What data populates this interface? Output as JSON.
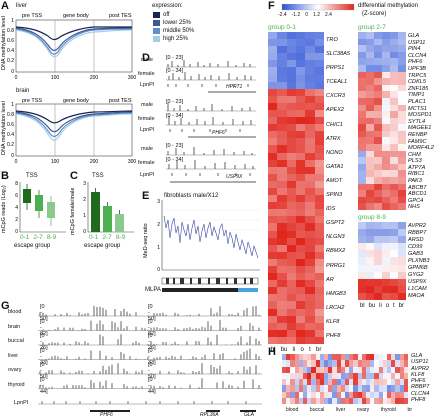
{
  "panels": {
    "A": {
      "label": "A",
      "subtitle_liver": "liver",
      "subtitle_brain": "brain",
      "regions": [
        "pre TSS",
        "gene body",
        "post TES"
      ],
      "ylabel": "DNA methylation level",
      "legend_title": "expression:",
      "legend": [
        {
          "name": "off",
          "color": "#1a2550"
        },
        {
          "name": "lower 25%",
          "color": "#3a5a95"
        },
        {
          "name": "middle 50%",
          "color": "#5f91c9"
        },
        {
          "name": "high 25%",
          "color": "#a9cbea"
        }
      ],
      "yticks": [
        "1",
        "0.8",
        "0.6",
        "0.4",
        "0.2",
        "0"
      ],
      "xticks": [
        "0",
        "100",
        "200",
        "300"
      ]
    },
    "B": {
      "label": "B",
      "title": "TSS",
      "ylabel": "mCpG reads (Log₂)",
      "yticks": [
        "8",
        "6",
        "4",
        "2",
        "0"
      ],
      "xticks": [
        "0-1",
        "2-7",
        "8-9"
      ],
      "xlabel": "escape group"
    },
    "C": {
      "label": "C",
      "title": "TSS",
      "ylabel": "mCpG female/male",
      "yticks": [
        "3",
        "2",
        "1",
        "0"
      ],
      "xticks": [
        "0-1",
        "2-7",
        "8-9"
      ],
      "xlabel": "escape group"
    },
    "D": {
      "label": "D",
      "tracks": [
        {
          "name": "male",
          "range": "0 - 23"
        },
        {
          "name": "female",
          "range": "0 - 34"
        },
        {
          "name": "LpnPI"
        },
        {
          "name": "male",
          "range": "0 - 23"
        },
        {
          "name": "female",
          "range": "0 - 34"
        },
        {
          "name": "LpnPI"
        },
        {
          "name": "male",
          "range": "0 - 23"
        },
        {
          "name": "female",
          "range": "0 - 34"
        },
        {
          "name": "LpnPI"
        }
      ],
      "genes": [
        "HPRT1",
        "PHF6",
        "USP9X"
      ]
    },
    "E": {
      "label": "E",
      "title": "fibroblasts male/X12",
      "ylabel": "MeD-seq ratio",
      "yticks": [
        "3",
        "2",
        "1",
        "0"
      ],
      "mlpa": "MLPA"
    },
    "F": {
      "label": "F",
      "colorbar_title": "differential methylation",
      "colorbar_sub": "(Z-score)",
      "colorbar_ticks": [
        "-2.4",
        "-1.2",
        "0",
        "1.2",
        "2.4"
      ],
      "group01": "group 0-1",
      "group27": "group 2-7",
      "group89": "group 8-9",
      "genes01": [
        "TRO",
        "SLC38A5",
        "PRPS1",
        "TCEAL1",
        "CXCR3",
        "APEX2",
        "CHIC1",
        "ATRX",
        "NONO",
        "GATA1",
        "AMOT",
        "SPIN3",
        "IDS",
        "GSPT2",
        "NLGN3",
        "RBMX2",
        "PRRG1",
        "AR",
        "HMGB3",
        "LRCH2",
        "KLF8",
        "PHF8"
      ],
      "genes27": [
        "GLA",
        "USP11",
        "PIN4",
        "CLCN4",
        "PHF6",
        "UPF3B",
        "TRPC5",
        "CDKL5",
        "ZNF185",
        "TIMP1",
        "PLAC1",
        "MCTS1",
        "MOSPD1",
        "SYTL4",
        "MAGEE1",
        "RENBP",
        "FAM9C",
        "MORF4L2",
        "CHM",
        "PLS3",
        "ATP7A",
        "RIBC1",
        "PAK3",
        "ABCB7",
        "ABCD1",
        "GPC4",
        "NHS"
      ],
      "genes89": [
        "AVPR2",
        "RBBP7",
        "ARSD",
        "CD99",
        "GAB3",
        "PLXNB3",
        "GPM6B",
        "GYG2",
        "USP9X",
        "L1CAM",
        "MAOA"
      ],
      "tissues": [
        "bl",
        "bu",
        "li",
        "o",
        "t",
        "br"
      ]
    },
    "G": {
      "label": "G",
      "tracks": [
        {
          "name": "blood",
          "r1": "0 - 50",
          "r2": "0 - 50"
        },
        {
          "name": "brain",
          "r1": "0 - 82",
          "r2": "0 - 82"
        },
        {
          "name": "buccal",
          "r1": "0 - 26",
          "r2": "0 - 26"
        },
        {
          "name": "liver",
          "r1": "0 - 33",
          "r2": "0 - 33"
        },
        {
          "name": "ovary",
          "r1": "0 - 50",
          "r2": "0 - 50"
        },
        {
          "name": "thyroid",
          "r1": "0 - 44",
          "r2": "0 - 44"
        }
      ],
      "lpnpi": "LpnPI",
      "genes": [
        "PHF6",
        "RPL36A",
        "GLA"
      ]
    },
    "H": {
      "label": "H",
      "genes": [
        "GLA",
        "USP11",
        "AVPR2",
        "KLF8",
        "PHF6",
        "RBBP7",
        "CLCN4",
        "PHF8"
      ],
      "tissues": [
        "blood",
        "buccal",
        "liver",
        "ovary",
        "thyroid",
        "br"
      ]
    }
  }
}
